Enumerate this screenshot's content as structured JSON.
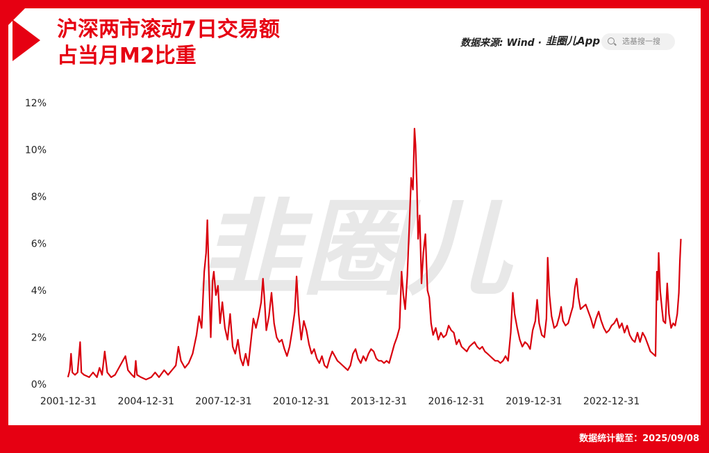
{
  "header": {
    "title_line1": "沪深两市滚动7日交易额",
    "title_line2": "占当月M2比重",
    "source": "数据来源: Wind ·",
    "logo_text": "韭圈儿App",
    "search_placeholder": "选基搜一搜"
  },
  "footer": {
    "stat_date": "数据统计截至：2025/09/08"
  },
  "watermark": "韭圈儿",
  "colors": {
    "accent": "#e60012",
    "line": "#d9000d",
    "watermark": "#e8e8e8"
  },
  "chart_data": {
    "type": "line",
    "title": "沪深两市滚动7日交易额占当月M2比重",
    "xlabel": "",
    "ylabel": "",
    "ylim": [
      0,
      12
    ],
    "xlim": [
      2001.5,
      2025.8
    ],
    "y_ticks": [
      "0%",
      "2%",
      "4%",
      "6%",
      "8%",
      "10%",
      "12%"
    ],
    "x_ticks": [
      "2001-12-31",
      "2004-12-31",
      "2007-12-31",
      "2010-12-31",
      "2013-12-31",
      "2016-12-31",
      "2019-12-31",
      "2022-12-31"
    ],
    "grid": false,
    "series": [
      {
        "name": "",
        "points": [
          [
            2001.98,
            0.3
          ],
          [
            2002.05,
            0.6
          ],
          [
            2002.1,
            1.3
          ],
          [
            2002.15,
            0.5
          ],
          [
            2002.25,
            0.4
          ],
          [
            2002.35,
            0.5
          ],
          [
            2002.45,
            1.8
          ],
          [
            2002.5,
            0.5
          ],
          [
            2002.6,
            0.4
          ],
          [
            2002.8,
            0.3
          ],
          [
            2002.95,
            0.5
          ],
          [
            2003.1,
            0.3
          ],
          [
            2003.2,
            0.7
          ],
          [
            2003.3,
            0.4
          ],
          [
            2003.4,
            1.4
          ],
          [
            2003.5,
            0.5
          ],
          [
            2003.65,
            0.3
          ],
          [
            2003.8,
            0.4
          ],
          [
            2004.0,
            0.8
          ],
          [
            2004.1,
            1.0
          ],
          [
            2004.2,
            1.2
          ],
          [
            2004.3,
            0.6
          ],
          [
            2004.45,
            0.4
          ],
          [
            2004.55,
            0.3
          ],
          [
            2004.6,
            1.0
          ],
          [
            2004.65,
            0.4
          ],
          [
            2004.8,
            0.3
          ],
          [
            2005.0,
            0.2
          ],
          [
            2005.2,
            0.3
          ],
          [
            2005.35,
            0.5
          ],
          [
            2005.5,
            0.3
          ],
          [
            2005.7,
            0.6
          ],
          [
            2005.85,
            0.4
          ],
          [
            2006.0,
            0.6
          ],
          [
            2006.15,
            0.8
          ],
          [
            2006.25,
            1.6
          ],
          [
            2006.35,
            1.0
          ],
          [
            2006.5,
            0.7
          ],
          [
            2006.65,
            0.9
          ],
          [
            2006.8,
            1.3
          ],
          [
            2006.95,
            2.1
          ],
          [
            2007.05,
            2.9
          ],
          [
            2007.15,
            2.4
          ],
          [
            2007.25,
            4.8
          ],
          [
            2007.32,
            5.6
          ],
          [
            2007.37,
            7.0
          ],
          [
            2007.42,
            5.0
          ],
          [
            2007.5,
            2.0
          ],
          [
            2007.57,
            4.4
          ],
          [
            2007.62,
            4.8
          ],
          [
            2007.7,
            3.8
          ],
          [
            2007.78,
            4.2
          ],
          [
            2007.86,
            2.6
          ],
          [
            2007.95,
            3.5
          ],
          [
            2008.05,
            2.4
          ],
          [
            2008.15,
            1.9
          ],
          [
            2008.25,
            3.0
          ],
          [
            2008.35,
            1.6
          ],
          [
            2008.45,
            1.3
          ],
          [
            2008.55,
            1.9
          ],
          [
            2008.65,
            1.1
          ],
          [
            2008.75,
            0.8
          ],
          [
            2008.85,
            1.3
          ],
          [
            2008.95,
            0.8
          ],
          [
            2009.05,
            1.8
          ],
          [
            2009.15,
            2.8
          ],
          [
            2009.25,
            2.4
          ],
          [
            2009.35,
            2.9
          ],
          [
            2009.45,
            3.5
          ],
          [
            2009.52,
            4.5
          ],
          [
            2009.58,
            3.6
          ],
          [
            2009.65,
            2.3
          ],
          [
            2009.75,
            2.9
          ],
          [
            2009.85,
            3.9
          ],
          [
            2009.95,
            2.6
          ],
          [
            2010.05,
            2.0
          ],
          [
            2010.15,
            1.8
          ],
          [
            2010.25,
            1.9
          ],
          [
            2010.35,
            1.5
          ],
          [
            2010.45,
            1.2
          ],
          [
            2010.55,
            1.6
          ],
          [
            2010.65,
            2.3
          ],
          [
            2010.75,
            3.1
          ],
          [
            2010.82,
            4.6
          ],
          [
            2010.9,
            3.0
          ],
          [
            2011.0,
            1.9
          ],
          [
            2011.1,
            2.7
          ],
          [
            2011.2,
            2.3
          ],
          [
            2011.3,
            1.7
          ],
          [
            2011.4,
            1.3
          ],
          [
            2011.5,
            1.5
          ],
          [
            2011.6,
            1.1
          ],
          [
            2011.7,
            0.9
          ],
          [
            2011.8,
            1.2
          ],
          [
            2011.9,
            0.8
          ],
          [
            2012.0,
            0.7
          ],
          [
            2012.1,
            1.1
          ],
          [
            2012.2,
            1.4
          ],
          [
            2012.3,
            1.2
          ],
          [
            2012.4,
            1.0
          ],
          [
            2012.5,
            0.9
          ],
          [
            2012.6,
            0.8
          ],
          [
            2012.7,
            0.7
          ],
          [
            2012.8,
            0.6
          ],
          [
            2012.9,
            0.8
          ],
          [
            2013.0,
            1.3
          ],
          [
            2013.1,
            1.5
          ],
          [
            2013.2,
            1.1
          ],
          [
            2013.3,
            0.9
          ],
          [
            2013.4,
            1.2
          ],
          [
            2013.5,
            1.0
          ],
          [
            2013.6,
            1.3
          ],
          [
            2013.7,
            1.5
          ],
          [
            2013.8,
            1.4
          ],
          [
            2013.9,
            1.1
          ],
          [
            2014.0,
            1.0
          ],
          [
            2014.1,
            1.0
          ],
          [
            2014.2,
            0.9
          ],
          [
            2014.3,
            1.0
          ],
          [
            2014.4,
            0.9
          ],
          [
            2014.5,
            1.3
          ],
          [
            2014.6,
            1.7
          ],
          [
            2014.7,
            2.0
          ],
          [
            2014.8,
            2.4
          ],
          [
            2014.88,
            4.8
          ],
          [
            2014.95,
            3.8
          ],
          [
            2015.02,
            3.2
          ],
          [
            2015.1,
            4.6
          ],
          [
            2015.18,
            6.8
          ],
          [
            2015.25,
            8.8
          ],
          [
            2015.32,
            8.3
          ],
          [
            2015.38,
            10.9
          ],
          [
            2015.42,
            10.2
          ],
          [
            2015.47,
            8.5
          ],
          [
            2015.52,
            6.2
          ],
          [
            2015.58,
            7.2
          ],
          [
            2015.65,
            4.3
          ],
          [
            2015.72,
            5.6
          ],
          [
            2015.8,
            6.4
          ],
          [
            2015.88,
            4.0
          ],
          [
            2015.95,
            3.7
          ],
          [
            2016.02,
            2.6
          ],
          [
            2016.1,
            2.1
          ],
          [
            2016.2,
            2.4
          ],
          [
            2016.3,
            1.9
          ],
          [
            2016.4,
            2.2
          ],
          [
            2016.5,
            2.0
          ],
          [
            2016.6,
            2.1
          ],
          [
            2016.7,
            2.5
          ],
          [
            2016.8,
            2.3
          ],
          [
            2016.9,
            2.2
          ],
          [
            2017.0,
            1.7
          ],
          [
            2017.1,
            1.9
          ],
          [
            2017.2,
            1.6
          ],
          [
            2017.3,
            1.5
          ],
          [
            2017.4,
            1.4
          ],
          [
            2017.5,
            1.6
          ],
          [
            2017.6,
            1.7
          ],
          [
            2017.7,
            1.8
          ],
          [
            2017.8,
            1.6
          ],
          [
            2017.9,
            1.5
          ],
          [
            2018.0,
            1.6
          ],
          [
            2018.1,
            1.4
          ],
          [
            2018.2,
            1.3
          ],
          [
            2018.3,
            1.2
          ],
          [
            2018.4,
            1.1
          ],
          [
            2018.5,
            1.0
          ],
          [
            2018.6,
            1.0
          ],
          [
            2018.7,
            0.9
          ],
          [
            2018.8,
            1.0
          ],
          [
            2018.9,
            1.2
          ],
          [
            2019.0,
            1.0
          ],
          [
            2019.1,
            2.2
          ],
          [
            2019.18,
            3.9
          ],
          [
            2019.25,
            3.0
          ],
          [
            2019.35,
            2.4
          ],
          [
            2019.45,
            1.9
          ],
          [
            2019.55,
            1.6
          ],
          [
            2019.65,
            1.8
          ],
          [
            2019.75,
            1.7
          ],
          [
            2019.85,
            1.5
          ],
          [
            2019.95,
            2.3
          ],
          [
            2020.05,
            2.7
          ],
          [
            2020.12,
            3.6
          ],
          [
            2020.2,
            2.6
          ],
          [
            2020.3,
            2.1
          ],
          [
            2020.4,
            2.0
          ],
          [
            2020.48,
            2.8
          ],
          [
            2020.53,
            5.4
          ],
          [
            2020.6,
            3.8
          ],
          [
            2020.68,
            2.9
          ],
          [
            2020.78,
            2.4
          ],
          [
            2020.88,
            2.5
          ],
          [
            2020.98,
            2.9
          ],
          [
            2021.05,
            3.3
          ],
          [
            2021.12,
            2.7
          ],
          [
            2021.22,
            2.5
          ],
          [
            2021.32,
            2.6
          ],
          [
            2021.42,
            3.0
          ],
          [
            2021.5,
            3.3
          ],
          [
            2021.58,
            4.1
          ],
          [
            2021.65,
            4.5
          ],
          [
            2021.72,
            3.7
          ],
          [
            2021.8,
            3.2
          ],
          [
            2021.9,
            3.3
          ],
          [
            2022.0,
            3.4
          ],
          [
            2022.1,
            3.1
          ],
          [
            2022.2,
            2.8
          ],
          [
            2022.3,
            2.4
          ],
          [
            2022.4,
            2.8
          ],
          [
            2022.5,
            3.1
          ],
          [
            2022.6,
            2.7
          ],
          [
            2022.7,
            2.4
          ],
          [
            2022.8,
            2.2
          ],
          [
            2022.9,
            2.3
          ],
          [
            2023.0,
            2.5
          ],
          [
            2023.1,
            2.6
          ],
          [
            2023.2,
            2.8
          ],
          [
            2023.3,
            2.4
          ],
          [
            2023.4,
            2.6
          ],
          [
            2023.5,
            2.2
          ],
          [
            2023.6,
            2.5
          ],
          [
            2023.7,
            2.1
          ],
          [
            2023.8,
            1.9
          ],
          [
            2023.9,
            1.8
          ],
          [
            2024.0,
            2.2
          ],
          [
            2024.1,
            1.8
          ],
          [
            2024.2,
            2.2
          ],
          [
            2024.3,
            2.0
          ],
          [
            2024.4,
            1.7
          ],
          [
            2024.5,
            1.4
          ],
          [
            2024.6,
            1.3
          ],
          [
            2024.7,
            1.2
          ],
          [
            2024.75,
            4.8
          ],
          [
            2024.78,
            3.6
          ],
          [
            2024.82,
            5.6
          ],
          [
            2024.88,
            4.0
          ],
          [
            2024.95,
            3.2
          ],
          [
            2025.0,
            2.7
          ],
          [
            2025.08,
            2.6
          ],
          [
            2025.15,
            4.3
          ],
          [
            2025.22,
            3.0
          ],
          [
            2025.3,
            2.4
          ],
          [
            2025.38,
            2.6
          ],
          [
            2025.46,
            2.5
          ],
          [
            2025.54,
            3.0
          ],
          [
            2025.6,
            3.9
          ],
          [
            2025.64,
            5.2
          ],
          [
            2025.68,
            6.2
          ]
        ]
      }
    ]
  }
}
